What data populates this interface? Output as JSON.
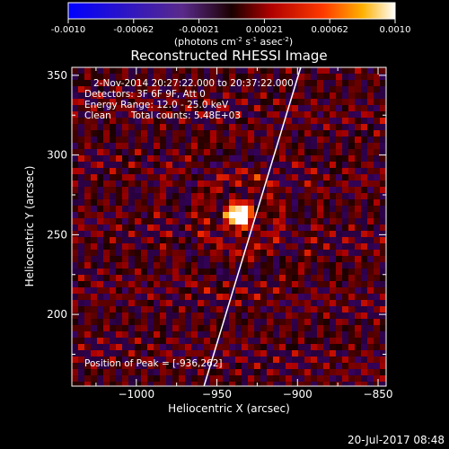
{
  "colorbar": {
    "ticks": [
      "-0.0010",
      "-0.00062",
      "-0.00021",
      "0.00021",
      "0.00062",
      "0.0010"
    ],
    "units_main": "(photons cm",
    "units_sup1": "-2",
    "units_mid": " s",
    "units_sup2": "-1",
    "units_end": " asec",
    "units_sup3": "-2",
    "units_close": ")",
    "min": -0.001,
    "max": 0.001
  },
  "chart_data": {
    "type": "heatmap",
    "title": "Reconstructed RHESSI Image",
    "xlabel": "Heliocentric X (arcsec)",
    "ylabel": "Heliocentric Y (arcsec)",
    "xlim": [
      -1040,
      -845
    ],
    "ylim": [
      155,
      355
    ],
    "x_ticks": [
      -1000,
      -950,
      -900,
      -850
    ],
    "x_tick_labels": [
      "−1000",
      "−950",
      "−900",
      "−850"
    ],
    "y_ticks": [
      200,
      250,
      300,
      350
    ],
    "y_tick_labels": [
      "200",
      "250",
      "300",
      "350"
    ],
    "peak": {
      "x": -936,
      "y": 262
    },
    "limb_line": {
      "x": [
        -958,
        -898
      ],
      "y": [
        155,
        355
      ]
    },
    "colormap": "rhessi-diverging",
    "annotations": {
      "time_range": "2-Nov-2014 20:27:22.000 to 20:37:22.000",
      "detectors": "Detectors: 3F 6F 9F, Att 0",
      "energy": "Energy Range: 12.0 - 25.0 keV",
      "algorithm": "Clean",
      "counts": "Total counts: 5.48E+03",
      "peak_label": "Position of Peak = [-936,262]"
    }
  },
  "footer": {
    "date": "20-Jul-2017 08:48"
  }
}
